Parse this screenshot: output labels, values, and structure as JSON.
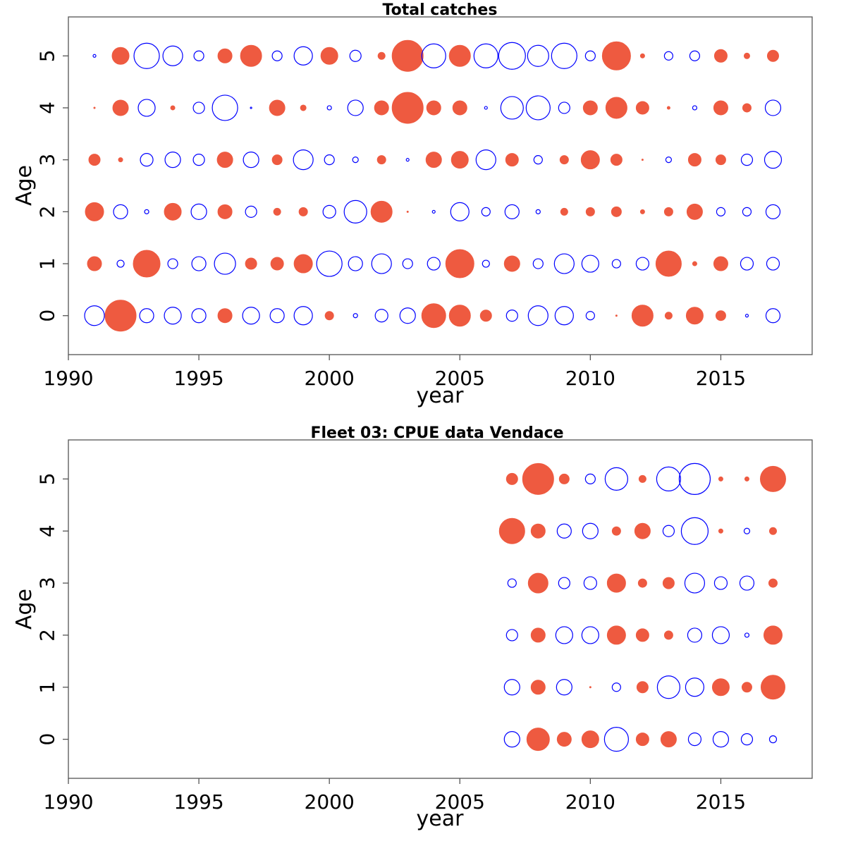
{
  "colors": {
    "positive": "#ee5a40",
    "negative": "#0000ff",
    "frame": "#555555"
  },
  "chart_data": [
    {
      "type": "scatter",
      "title": "Total catches",
      "xlabel": "year",
      "ylabel": "Age",
      "xlim": [
        1990,
        2018.5
      ],
      "ylim": [
        -0.75,
        5.75
      ],
      "xticks": [
        1990,
        1995,
        2000,
        2005,
        2010,
        2015
      ],
      "yticks": [
        0,
        1,
        2,
        3,
        4,
        5
      ],
      "grid": false,
      "encoding": "bubble size = |residual|, filled = positive, open = negative",
      "years": [
        1991,
        1992,
        1993,
        1994,
        1995,
        1996,
        1997,
        1998,
        1999,
        2000,
        2001,
        2002,
        2003,
        2004,
        2005,
        2006,
        2007,
        2008,
        2009,
        2010,
        2011,
        2012,
        2013,
        2014,
        2015,
        2016,
        2017
      ],
      "residuals": [
        {
          "age": 0,
          "values": [
            -14,
            22,
            -10,
            -12,
            -10,
            10,
            -12,
            -10,
            -13,
            6,
            -3,
            -9,
            -11,
            17,
            15,
            8,
            -8,
            -14,
            -13,
            -6,
            1,
            15,
            5,
            12,
            7,
            -2,
            -10
          ]
        },
        {
          "age": 1,
          "values": [
            10,
            -5,
            19,
            -7,
            -10,
            -15,
            8,
            9,
            13,
            -18,
            -10,
            -14,
            -7,
            -9,
            20,
            -5,
            11,
            -7,
            -14,
            -12,
            -6,
            -9,
            18,
            3,
            10,
            -9,
            -9
          ]
        },
        {
          "age": 2,
          "values": [
            13,
            -10,
            -3,
            12,
            -11,
            10,
            -8,
            5,
            6,
            -9,
            -16,
            15,
            1,
            -2,
            -13,
            -6,
            -10,
            -3,
            5,
            6,
            7,
            3,
            6,
            11,
            -6,
            -6,
            -10
          ]
        },
        {
          "age": 3,
          "values": [
            8,
            3,
            -9,
            -11,
            -8,
            11,
            -11,
            7,
            -14,
            -7,
            -4,
            6,
            -2,
            11,
            12,
            -14,
            9,
            -6,
            6,
            13,
            8,
            1,
            -4,
            9,
            7,
            -8,
            -12
          ]
        },
        {
          "age": 4,
          "values": [
            1,
            11,
            -12,
            3,
            -8,
            -18,
            -1,
            11,
            4,
            -3,
            -11,
            10,
            22,
            10,
            10,
            -2,
            -16,
            -17,
            -8,
            10,
            15,
            9,
            2,
            -3,
            10,
            6,
            -11
          ]
        },
        {
          "age": 5,
          "values": [
            -2,
            12,
            -18,
            -14,
            -7,
            10,
            15,
            -7,
            -13,
            12,
            -8,
            5,
            22,
            -17,
            15,
            -17,
            -19,
            -15,
            -18,
            -7,
            20,
            3,
            -6,
            -7,
            9,
            4,
            8
          ]
        }
      ]
    },
    {
      "type": "scatter",
      "title": "Fleet 03:  CPUE data Vendace",
      "xlabel": "year",
      "ylabel": "Age",
      "xlim": [
        1990,
        2018.5
      ],
      "ylim": [
        -0.75,
        5.75
      ],
      "xticks": [
        1990,
        1995,
        2000,
        2005,
        2010,
        2015
      ],
      "yticks": [
        0,
        1,
        2,
        3,
        4,
        5
      ],
      "grid": false,
      "encoding": "bubble size = |residual|, filled = positive, open = negative",
      "years": [
        2007,
        2008,
        2009,
        2010,
        2011,
        2012,
        2013,
        2014,
        2015,
        2016,
        2017
      ],
      "residuals": [
        {
          "age": 0,
          "values": [
            -11,
            16,
            10,
            12,
            -17,
            9,
            11,
            -9,
            -11,
            -8,
            -5
          ]
        },
        {
          "age": 1,
          "values": [
            -11,
            10,
            -11,
            1,
            -6,
            8,
            -16,
            -13,
            12,
            7,
            17
          ]
        },
        {
          "age": 2,
          "values": [
            -8,
            10,
            -12,
            -12,
            13,
            9,
            6,
            -10,
            -12,
            -3,
            13
          ]
        },
        {
          "age": 3,
          "values": [
            -6,
            14,
            -8,
            -9,
            13,
            6,
            8,
            -14,
            -9,
            -10,
            6
          ]
        },
        {
          "age": 4,
          "values": [
            18,
            10,
            -10,
            -11,
            6,
            11,
            -8,
            -19,
            3,
            -4,
            5
          ]
        },
        {
          "age": 5,
          "values": [
            8,
            22,
            7,
            -7,
            -16,
            5,
            -17,
            -22,
            3,
            3,
            18
          ]
        }
      ]
    }
  ]
}
